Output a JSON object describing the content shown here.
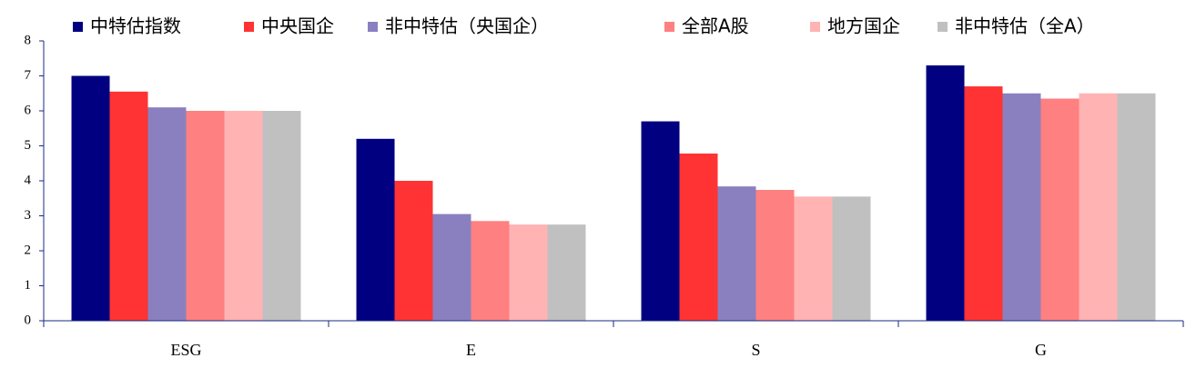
{
  "chart_data": {
    "type": "bar",
    "categories": [
      "ESG",
      "E",
      "S",
      "G"
    ],
    "series": [
      {
        "name": "中特估指数",
        "color": "#000080",
        "values": [
          7.0,
          5.2,
          5.7,
          7.3
        ]
      },
      {
        "name": "中央国企",
        "color": "#ff3333",
        "values": [
          6.55,
          4.0,
          4.78,
          6.7
        ]
      },
      {
        "name": "非中特估（央国企）",
        "color": "#8a80c0",
        "values": [
          6.1,
          3.05,
          3.84,
          6.5
        ]
      },
      {
        "name": "全部A股",
        "color": "#ff8080",
        "values": [
          6.0,
          2.85,
          3.74,
          6.35
        ]
      },
      {
        "name": "地方国企",
        "color": "#ffb3b3",
        "values": [
          6.0,
          2.75,
          3.55,
          6.5
        ]
      },
      {
        "name": "非中特估（全A）",
        "color": "#c0c0c0",
        "values": [
          6.0,
          2.75,
          3.55,
          6.5
        ]
      }
    ],
    "ylim": [
      0,
      8
    ],
    "yticks": [
      0,
      1,
      2,
      3,
      4,
      5,
      6,
      7,
      8
    ],
    "grid": false,
    "legend": "top"
  }
}
